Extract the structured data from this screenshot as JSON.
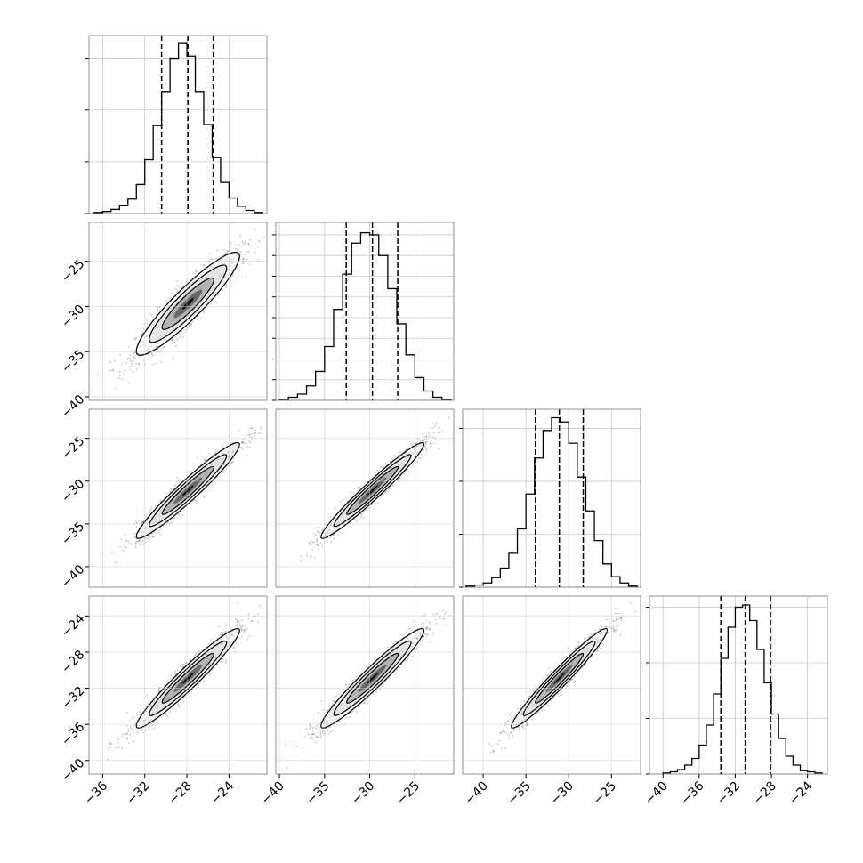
{
  "chart_data": {
    "type": "corner",
    "n_params": 4,
    "grid": true,
    "title": "",
    "parameter_labels": [
      "",
      "",
      "",
      ""
    ],
    "histograms": [
      {
        "param_index": 0,
        "bin_edges": [
          -36.8,
          -36,
          -35.2,
          -34.4,
          -33.6,
          -32.8,
          -32,
          -31.2,
          -30.4,
          -29.6,
          -28.8,
          -28,
          -27.2,
          -26.4,
          -25.6,
          -24.8,
          -24,
          -23.2,
          -22.4,
          -21.6,
          -20.8
        ],
        "counts": [
          1,
          2,
          4,
          8,
          14,
          28,
          52,
          85,
          118,
          150,
          165,
          152,
          118,
          86,
          54,
          30,
          15,
          7,
          3,
          1
        ],
        "quantiles": [
          -30.4,
          -27.9,
          -25.5
        ],
        "xlim": [
          -37.3,
          -20.4
        ],
        "ylim": [
          0,
          172
        ],
        "ytick_values": [
          0,
          50,
          100,
          150
        ]
      },
      {
        "param_index": 1,
        "bin_edges": [
          -40,
          -39,
          -38,
          -37,
          -36,
          -35,
          -34,
          -33,
          -32,
          -31,
          -30,
          -29,
          -28,
          -27,
          -26,
          -25,
          -24,
          -23,
          -22,
          -21
        ],
        "counts": [
          1,
          3,
          6,
          14,
          28,
          52,
          88,
          122,
          152,
          162,
          160,
          140,
          108,
          74,
          44,
          22,
          9,
          3,
          1
        ],
        "quantiles": [
          -32.6,
          -29.7,
          -26.9
        ],
        "xlim": [
          -40.4,
          -20.7
        ],
        "ylim": [
          0,
          172
        ],
        "ytick_values": [
          0,
          20,
          40,
          60,
          80,
          100,
          120,
          140,
          160
        ]
      },
      {
        "param_index": 2,
        "bin_edges": [
          -42,
          -41,
          -40,
          -39,
          -38,
          -37,
          -36,
          -35,
          -34,
          -33,
          -32,
          -31,
          -30,
          -29,
          -28,
          -27,
          -26,
          -25,
          -24,
          -23,
          -22
        ],
        "counts": [
          1,
          2,
          4,
          9,
          18,
          32,
          55,
          88,
          122,
          148,
          160,
          156,
          136,
          104,
          72,
          44,
          22,
          10,
          4,
          1
        ],
        "quantiles": [
          -33.9,
          -31.1,
          -28.3
        ],
        "xlim": [
          -42.4,
          -21.6
        ],
        "ylim": [
          0,
          168
        ],
        "ytick_values": [
          0,
          50,
          100,
          150
        ]
      },
      {
        "param_index": 3,
        "bin_edges": [
          -40,
          -39.2,
          -38.4,
          -37.6,
          -36.8,
          -36,
          -35.2,
          -34.4,
          -33.6,
          -32.8,
          -32,
          -31.2,
          -30.4,
          -29.6,
          -28.8,
          -28,
          -27.2,
          -26.4,
          -25.6,
          -24.8,
          -24,
          -23.2,
          -22.4
        ],
        "counts": [
          1,
          2,
          4,
          8,
          14,
          26,
          44,
          72,
          104,
          132,
          150,
          152,
          138,
          112,
          82,
          54,
          32,
          16,
          8,
          3,
          2,
          1
        ],
        "quantiles": [
          -33.6,
          -30.9,
          -28.1
        ],
        "xlim": [
          -41.5,
          -21.8
        ],
        "ylim": [
          0,
          160
        ],
        "ytick_values": [
          0,
          50,
          100,
          150
        ]
      }
    ],
    "pairs": [
      {
        "row": 1,
        "col": 0,
        "x_param": 0,
        "y_param": 1,
        "correlation": 0.92
      },
      {
        "row": 2,
        "col": 0,
        "x_param": 0,
        "y_param": 2,
        "correlation": 0.96
      },
      {
        "row": 2,
        "col": 1,
        "x_param": 1,
        "y_param": 2,
        "correlation": 0.97
      },
      {
        "row": 3,
        "col": 0,
        "x_param": 0,
        "y_param": 3,
        "correlation": 0.96
      },
      {
        "row": 3,
        "col": 1,
        "x_param": 1,
        "y_param": 3,
        "correlation": 0.96
      },
      {
        "row": 3,
        "col": 2,
        "x_param": 2,
        "y_param": 3,
        "correlation": 0.97
      }
    ],
    "x_tick_labels": [
      [
        "−36",
        "−32",
        "−28",
        "−24"
      ],
      [
        "−40",
        "−35",
        "−30",
        "−25"
      ],
      [
        "−40",
        "−35",
        "−30",
        "−25"
      ],
      [
        "−40",
        "−36",
        "−32",
        "−28",
        "−24"
      ]
    ],
    "x_tick_values": [
      [
        -36,
        -32,
        -28,
        -24
      ],
      [
        -40,
        -35,
        -30,
        -25
      ],
      [
        -40,
        -35,
        -30,
        -25
      ],
      [
        -40,
        -36,
        -32,
        -28,
        -24
      ]
    ],
    "y_tick_labels": [
      [],
      [
        "−25",
        "−30",
        "−35",
        "−40"
      ],
      [
        "−25",
        "−30",
        "−35",
        "−40"
      ],
      [
        "−24",
        "−28",
        "−32",
        "−36",
        "−40"
      ]
    ],
    "y_tick_values": [
      [],
      [
        -25,
        -30,
        -35,
        -40
      ],
      [
        -25,
        -30,
        -35,
        -40
      ],
      [
        -24,
        -28,
        -32,
        -36,
        -40
      ]
    ],
    "colors": {
      "points": "#000000",
      "contour_fills": [
        "#ffffff",
        "#e4e4e4",
        "#aaaaaa",
        "#5a5a5a",
        "#000000"
      ],
      "lines": "#000000",
      "grid": "#c8c8c8"
    }
  }
}
